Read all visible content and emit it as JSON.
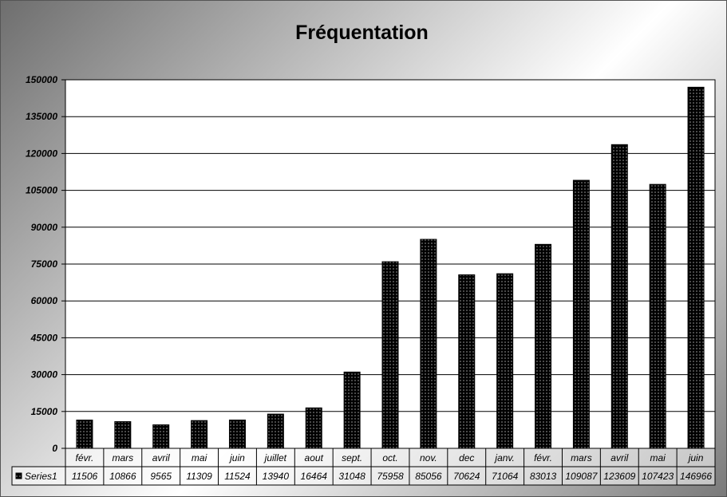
{
  "chart_data": {
    "type": "bar",
    "title": "Fréquentation",
    "xlabel": "",
    "ylabel": "",
    "ylim": [
      0,
      150000
    ],
    "y_ticks": [
      0,
      15000,
      30000,
      45000,
      60000,
      75000,
      90000,
      105000,
      120000,
      135000,
      150000
    ],
    "grid": true,
    "legend": "data-table-left",
    "categories": [
      "févr.",
      "mars",
      "avril",
      "mai",
      "juin",
      "juillet",
      "aout",
      "sept.",
      "oct.",
      "nov.",
      "dec",
      "janv.",
      "févr.",
      "mars",
      "avril",
      "mai",
      "juin"
    ],
    "series": [
      {
        "name": "Series1",
        "values": [
          11506,
          10866,
          9565,
          11309,
          11524,
          13940,
          16464,
          31048,
          75958,
          85056,
          70624,
          71064,
          83013,
          109087,
          123609,
          107423,
          146966
        ]
      }
    ]
  },
  "colors": {
    "bar_fill": "#000000",
    "bar_dots": "#ffffff",
    "plot_background": "#ffffff",
    "gridline": "#000000"
  }
}
